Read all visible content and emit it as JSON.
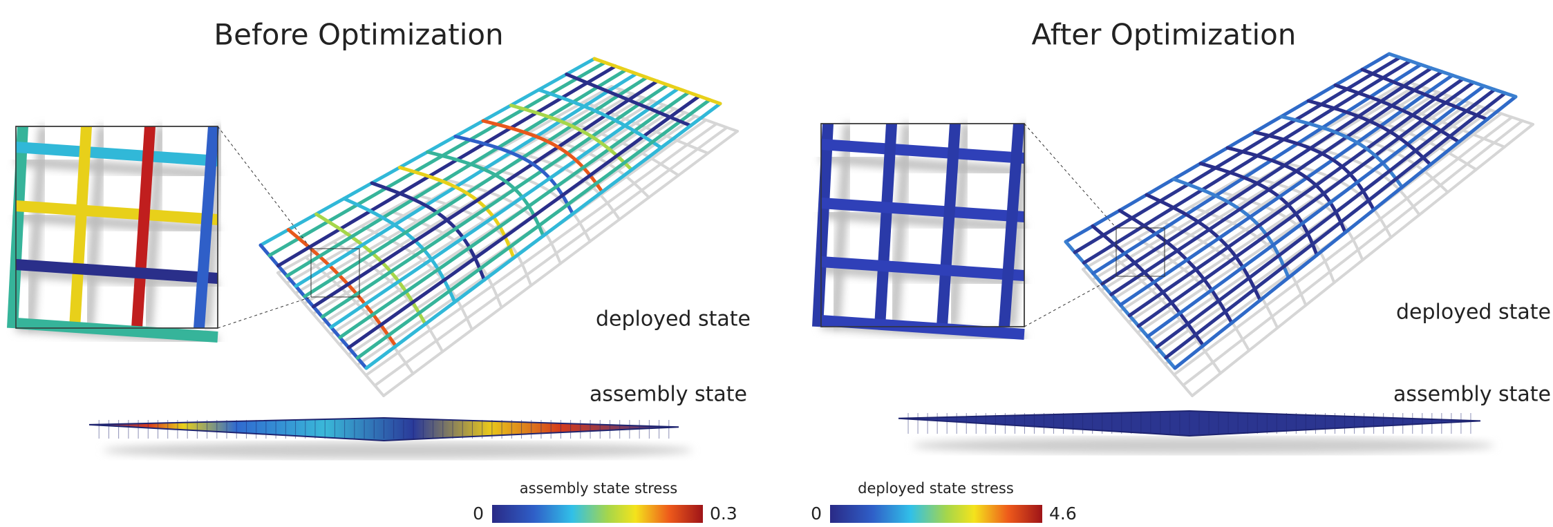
{
  "panels": [
    {
      "title": "Before Optimization",
      "deployed_label": "deployed state",
      "assembly_label": "assembly state"
    },
    {
      "title": "After Optimization",
      "deployed_label": "deployed state",
      "assembly_label": "assembly state"
    }
  ],
  "colorbars": [
    {
      "label": "assembly state stress",
      "min": 0,
      "max": 0.3
    },
    {
      "label": "deployed state stress",
      "min": 0,
      "max": 4.6
    }
  ]
}
